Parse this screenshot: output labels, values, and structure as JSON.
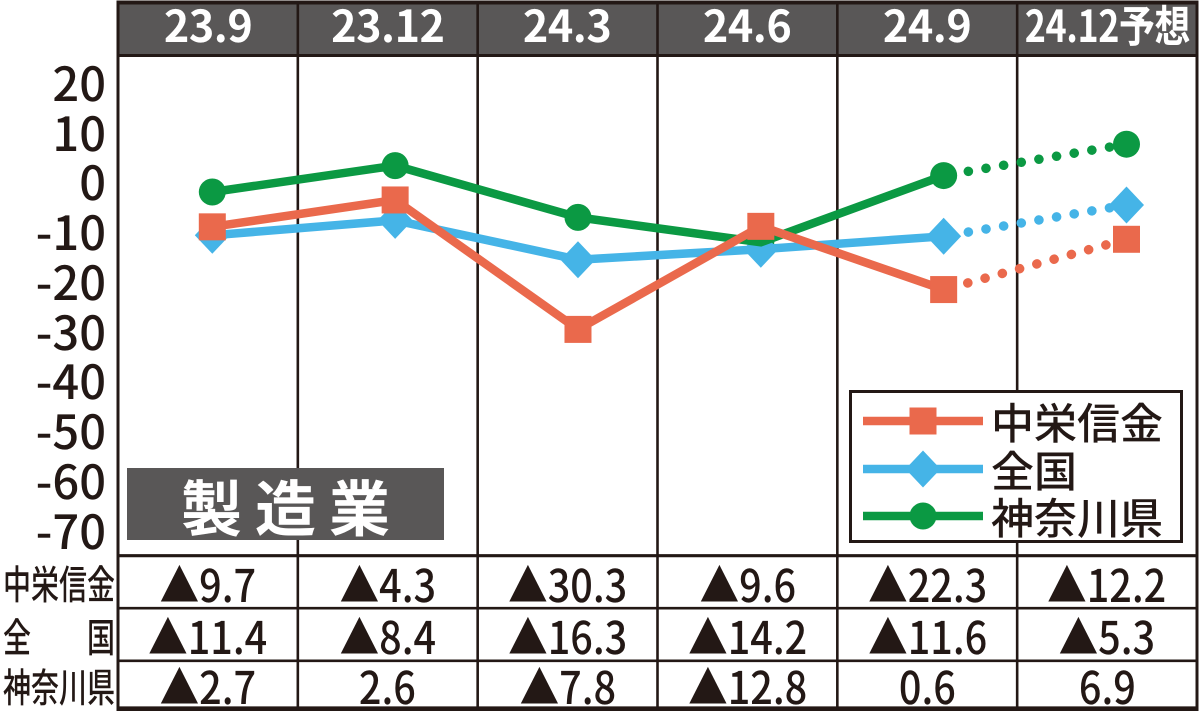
{
  "colors": {
    "ink": "#231815",
    "header_fill": "#595757",
    "title_box_fill": "#595757",
    "header_text": "#ffffff",
    "background": "#ffffff",
    "series_red": "#ea694c",
    "series_blue": "#45b4e7",
    "series_green": "#0b9943"
  },
  "chart_data": {
    "type": "line",
    "title_box": "製造業",
    "categories": [
      "23.9",
      "23.12",
      "24.3",
      "24.6",
      "24.9",
      "24.12予想"
    ],
    "y_ticks": [
      20,
      10,
      0,
      -10,
      -20,
      -30,
      -40,
      -50,
      -60,
      -70
    ],
    "ylim": [
      -75.2,
      24.6
    ],
    "grid": "vertical-only",
    "forecast_from_index": 4,
    "forecast_style": "dotted",
    "legend_position": "bottom-right-inside",
    "series": [
      {
        "name": "中栄信金",
        "color": "#ea694c",
        "marker": "square",
        "values": [
          -9.7,
          -4.3,
          -30.3,
          -9.6,
          -22.3,
          -12.2
        ]
      },
      {
        "name": "全国",
        "color": "#45b4e7",
        "marker": "diamond",
        "values": [
          -11.4,
          -8.4,
          -16.3,
          -14.2,
          -11.6,
          -5.3
        ]
      },
      {
        "name": "神奈川県",
        "color": "#0b9943",
        "marker": "circle",
        "values": [
          -2.7,
          2.6,
          -7.8,
          -12.8,
          0.6,
          6.9
        ]
      }
    ]
  },
  "table": {
    "row_headers": [
      "中栄信金",
      "全国",
      "神奈川県"
    ],
    "rows": [
      [
        "▲9.7",
        "▲4.3",
        "▲30.3",
        "▲9.6",
        "▲22.3",
        "▲12.2"
      ],
      [
        "▲11.4",
        "▲8.4",
        "▲16.3",
        "▲14.2",
        "▲11.6",
        "▲5.3"
      ],
      [
        "▲2.7",
        "2.6",
        "▲7.8",
        "▲12.8",
        "0.6",
        "6.9"
      ]
    ]
  }
}
